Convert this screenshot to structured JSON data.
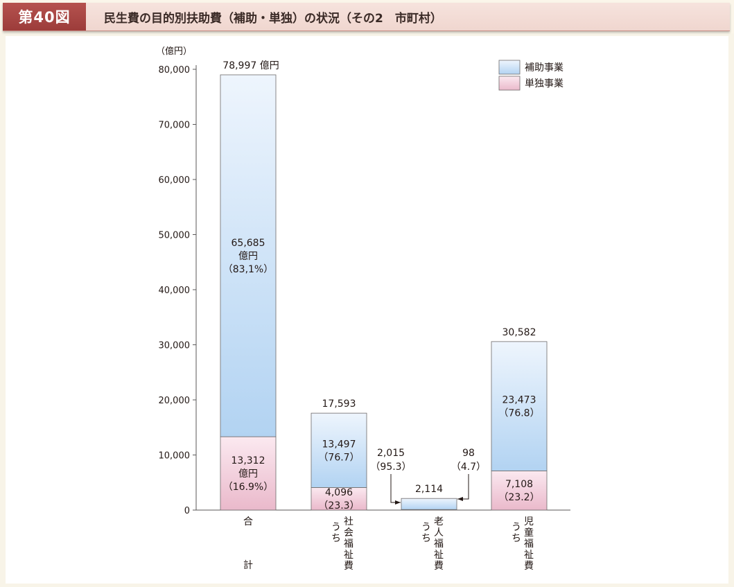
{
  "header": {
    "figure_label": "第40図",
    "title": "民生費の目的別扶助費（補助・単独）の状況（その2　市町村）"
  },
  "chart_data": {
    "type": "bar",
    "stacked": true,
    "y_unit": "（億円）",
    "ylim": [
      0,
      80000
    ],
    "y_ticks": [
      "0",
      "10,000",
      "20,000",
      "30,000",
      "40,000",
      "50,000",
      "60,000",
      "70,000",
      "80,000"
    ],
    "categories": [
      {
        "label_lines": [
          "合",
          "計"
        ]
      },
      {
        "label_lines": [
          "うち",
          "社会福祉費"
        ]
      },
      {
        "label_lines": [
          "うち",
          "老人福祉費"
        ]
      },
      {
        "label_lines": [
          "うち",
          "児童福祉費"
        ]
      }
    ],
    "series": [
      {
        "name": "単独事業",
        "values": [
          13312,
          4096,
          98,
          7108
        ],
        "color_top": "#fbe9f0",
        "color_bottom": "#eab9cb"
      },
      {
        "name": "補助事業",
        "values": [
          65685,
          13497,
          2015,
          23473
        ],
        "color_top": "#eef5fd",
        "color_bottom": "#b2d3f2"
      }
    ],
    "totals": [
      78997,
      17593,
      2114,
      30582
    ],
    "total_labels": [
      "78,997 億円",
      "17,593",
      "2,114",
      "30,582"
    ],
    "segment_labels": {
      "補助事業": [
        [
          "65,685",
          "億円",
          "（83,1%）"
        ],
        [
          "13,497",
          "（76.7）"
        ],
        [
          "2,015",
          "（95.3）"
        ],
        [
          "23,473",
          "（76.8）"
        ]
      ],
      "単独事業": [
        [
          "13,312",
          "億円",
          "（16.9%）"
        ],
        [
          "4,096",
          "（23.3）"
        ],
        [
          "98",
          "（4.7）"
        ],
        [
          "7,108",
          "（23.2）"
        ]
      ]
    },
    "legend": {
      "position": "top-right",
      "items": [
        "補助事業",
        "単独事業"
      ]
    },
    "grid": false
  }
}
